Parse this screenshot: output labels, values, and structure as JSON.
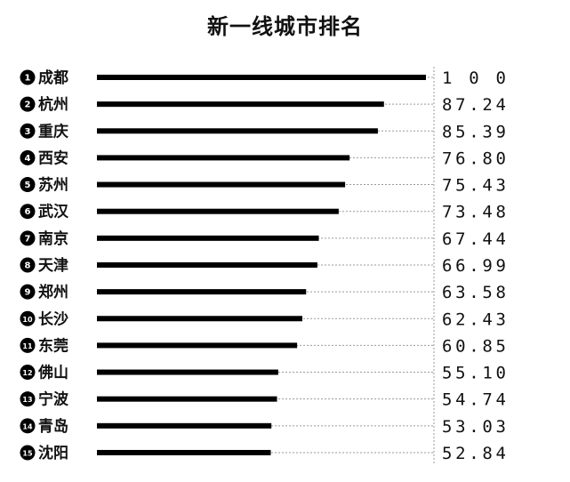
{
  "chart_data": {
    "type": "bar",
    "title": "新一线城市排名",
    "orientation": "horizontal",
    "xlim": [
      0,
      100
    ],
    "value_labels": [
      "1 0 0",
      "87.24",
      "85.39",
      "76.80",
      "75.43",
      "73.48",
      "67.44",
      "66.99",
      "63.58",
      "62.43",
      "60.85",
      "55.10",
      "54.74",
      "53.03",
      "52.84"
    ],
    "categories": [
      "成都",
      "杭州",
      "重庆",
      "西安",
      "苏州",
      "武汉",
      "南京",
      "天津",
      "郑州",
      "长沙",
      "东莞",
      "佛山",
      "宁波",
      "青岛",
      "沈阳"
    ],
    "ranks": [
      "1",
      "2",
      "3",
      "4",
      "5",
      "6",
      "7",
      "8",
      "9",
      "10",
      "11",
      "12",
      "13",
      "14",
      "15"
    ],
    "values": [
      100,
      87.24,
      85.39,
      76.8,
      75.43,
      73.48,
      67.44,
      66.99,
      63.58,
      62.43,
      60.85,
      55.1,
      54.74,
      53.03,
      52.84
    ],
    "colors": {
      "bar": "#000000",
      "grid": "#9a9a9a",
      "badge": "#000000"
    }
  }
}
